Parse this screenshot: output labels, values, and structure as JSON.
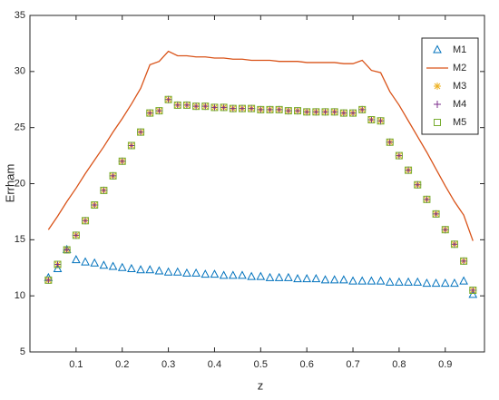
{
  "chart_data": {
    "type": "line",
    "xlabel": "z",
    "ylabel": "Errham",
    "x": [
      0.04,
      0.06,
      0.08,
      0.1,
      0.12,
      0.14,
      0.16,
      0.18,
      0.2,
      0.22,
      0.24,
      0.26,
      0.28,
      0.3,
      0.32,
      0.34,
      0.36,
      0.38,
      0.4,
      0.42,
      0.44,
      0.46,
      0.48,
      0.5,
      0.52,
      0.54,
      0.56,
      0.58,
      0.6,
      0.62,
      0.64,
      0.66,
      0.68,
      0.7,
      0.72,
      0.74,
      0.76,
      0.78,
      0.8,
      0.82,
      0.84,
      0.86,
      0.88,
      0.9,
      0.92,
      0.94,
      0.96
    ],
    "series": [
      {
        "name": "M1",
        "color": "#0072bd",
        "marker": "triangle",
        "values": [
          11.6,
          12.4,
          14.1,
          13.2,
          13.0,
          12.9,
          12.7,
          12.6,
          12.5,
          12.4,
          12.3,
          12.3,
          12.2,
          12.1,
          12.1,
          12.0,
          12.0,
          11.9,
          11.9,
          11.8,
          11.8,
          11.8,
          11.7,
          11.7,
          11.6,
          11.6,
          11.6,
          11.5,
          11.5,
          11.5,
          11.4,
          11.4,
          11.4,
          11.3,
          11.3,
          11.3,
          11.3,
          11.2,
          11.2,
          11.2,
          11.2,
          11.1,
          11.1,
          11.1,
          11.1,
          11.3,
          10.1
        ]
      },
      {
        "name": "M2",
        "color": "#d95319",
        "marker": "line",
        "values": [
          15.9,
          17.1,
          18.4,
          19.6,
          20.9,
          22.1,
          23.3,
          24.6,
          25.8,
          27.1,
          28.5,
          30.6,
          30.9,
          31.8,
          31.4,
          31.4,
          31.3,
          31.3,
          31.2,
          31.2,
          31.1,
          31.1,
          31.0,
          31.0,
          31.0,
          30.9,
          30.9,
          30.9,
          30.8,
          30.8,
          30.8,
          30.8,
          30.7,
          30.7,
          31.0,
          30.1,
          29.9,
          28.2,
          27.0,
          25.6,
          24.2,
          22.8,
          21.3,
          19.8,
          18.4,
          17.2,
          14.9
        ]
      },
      {
        "name": "M3",
        "color": "#edb120",
        "marker": "star",
        "values": [
          11.4,
          12.8,
          14.1,
          15.4,
          16.7,
          18.1,
          19.4,
          20.7,
          22.0,
          23.4,
          24.6,
          26.3,
          26.5,
          27.5,
          27.0,
          27.0,
          26.9,
          26.9,
          26.8,
          26.8,
          26.7,
          26.7,
          26.7,
          26.6,
          26.6,
          26.6,
          26.5,
          26.5,
          26.4,
          26.4,
          26.4,
          26.4,
          26.3,
          26.3,
          26.6,
          25.7,
          25.6,
          23.7,
          22.5,
          21.2,
          19.9,
          18.6,
          17.3,
          15.9,
          14.6,
          13.1,
          10.5
        ]
      },
      {
        "name": "M4",
        "color": "#7e2f8e",
        "marker": "plus",
        "values": [
          11.4,
          12.8,
          14.1,
          15.4,
          16.7,
          18.1,
          19.4,
          20.7,
          22.0,
          23.4,
          24.6,
          26.3,
          26.5,
          27.5,
          27.0,
          27.0,
          26.9,
          26.9,
          26.8,
          26.8,
          26.7,
          26.7,
          26.7,
          26.6,
          26.6,
          26.6,
          26.5,
          26.5,
          26.4,
          26.4,
          26.4,
          26.4,
          26.3,
          26.3,
          26.6,
          25.7,
          25.6,
          23.7,
          22.5,
          21.2,
          19.9,
          18.6,
          17.3,
          15.9,
          14.6,
          13.1,
          10.5
        ]
      },
      {
        "name": "M5",
        "color": "#77ac30",
        "marker": "square",
        "values": [
          11.4,
          12.8,
          14.1,
          15.4,
          16.7,
          18.1,
          19.4,
          20.7,
          22.0,
          23.4,
          24.6,
          26.3,
          26.5,
          27.5,
          27.0,
          27.0,
          26.9,
          26.9,
          26.8,
          26.8,
          26.7,
          26.7,
          26.7,
          26.6,
          26.6,
          26.6,
          26.5,
          26.5,
          26.4,
          26.4,
          26.4,
          26.4,
          26.3,
          26.3,
          26.6,
          25.7,
          25.6,
          23.7,
          22.5,
          21.2,
          19.9,
          18.6,
          17.3,
          15.9,
          14.6,
          13.1,
          10.5
        ]
      }
    ],
    "xlim": [
      0,
      0.985
    ],
    "ylim": [
      5,
      35
    ],
    "xticks": [
      0.1,
      0.2,
      0.3,
      0.4,
      0.5,
      0.6,
      0.7,
      0.8,
      0.9
    ],
    "yticks": [
      5,
      10,
      15,
      20,
      25,
      30,
      35
    ],
    "grid": false,
    "legend": "top-right"
  }
}
